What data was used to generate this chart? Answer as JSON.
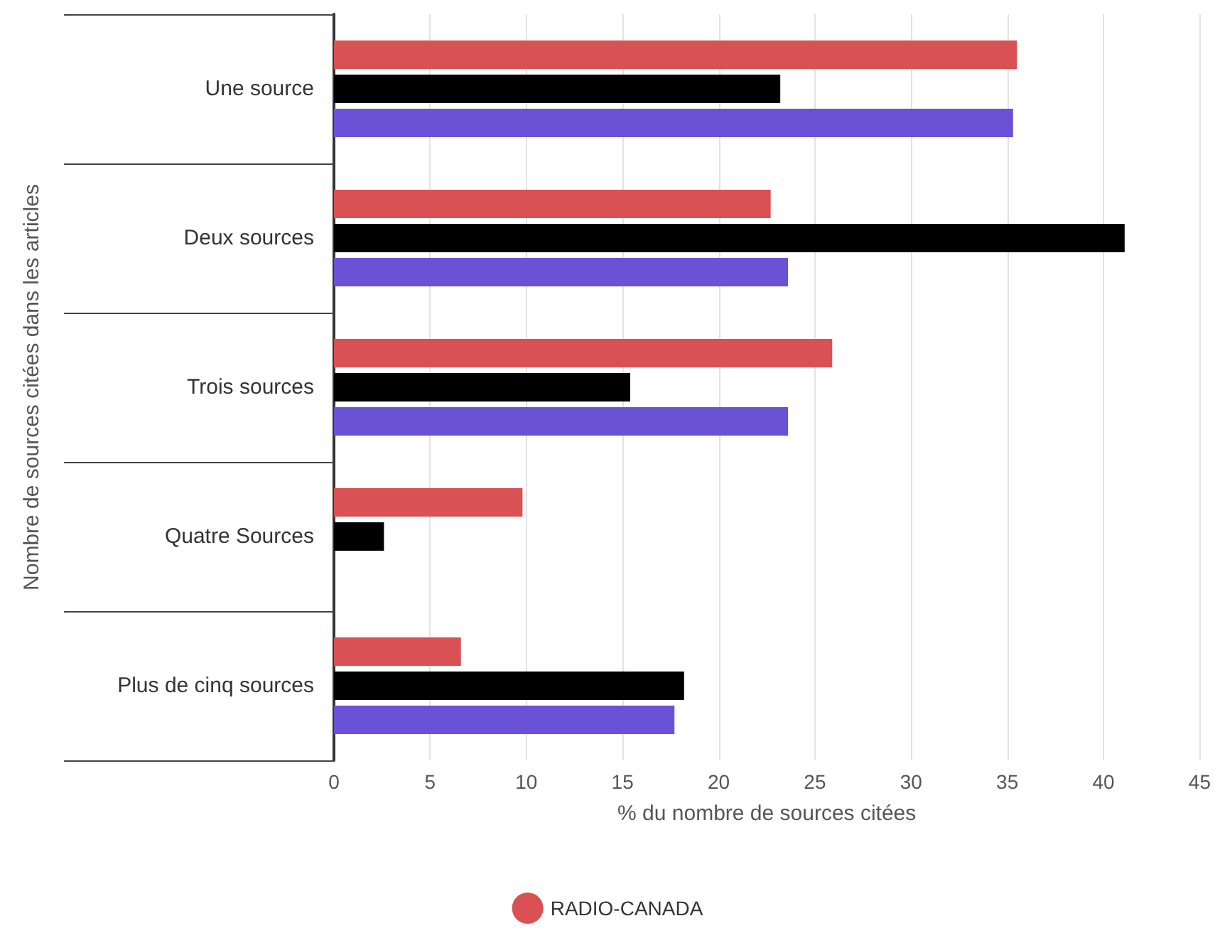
{
  "chart_data": {
    "type": "bar",
    "orientation": "horizontal",
    "xlabel": "% du nombre de sources citées",
    "ylabel": "Nombre de sources citées dans les articles",
    "categories": [
      "Une source",
      "Deux sources",
      "Trois sources",
      "Quatre Sources",
      "Plus de cinq sources"
    ],
    "series": [
      {
        "name": "RADIO-CANADA",
        "color": "#d95055",
        "values": [
          35.5,
          22.7,
          25.9,
          9.8,
          6.6
        ]
      },
      {
        "color": "#000000",
        "values": [
          23.2,
          41.1,
          15.4,
          2.6,
          18.2
        ]
      },
      {
        "color": "#6a52d6",
        "values": [
          35.3,
          23.6,
          23.6,
          null,
          17.7
        ]
      }
    ],
    "xlim": [
      0,
      45
    ],
    "xticks": [
      0,
      5,
      10,
      15,
      20,
      25,
      30,
      35,
      40,
      45
    ],
    "grid": "x",
    "legend": "bottom"
  }
}
